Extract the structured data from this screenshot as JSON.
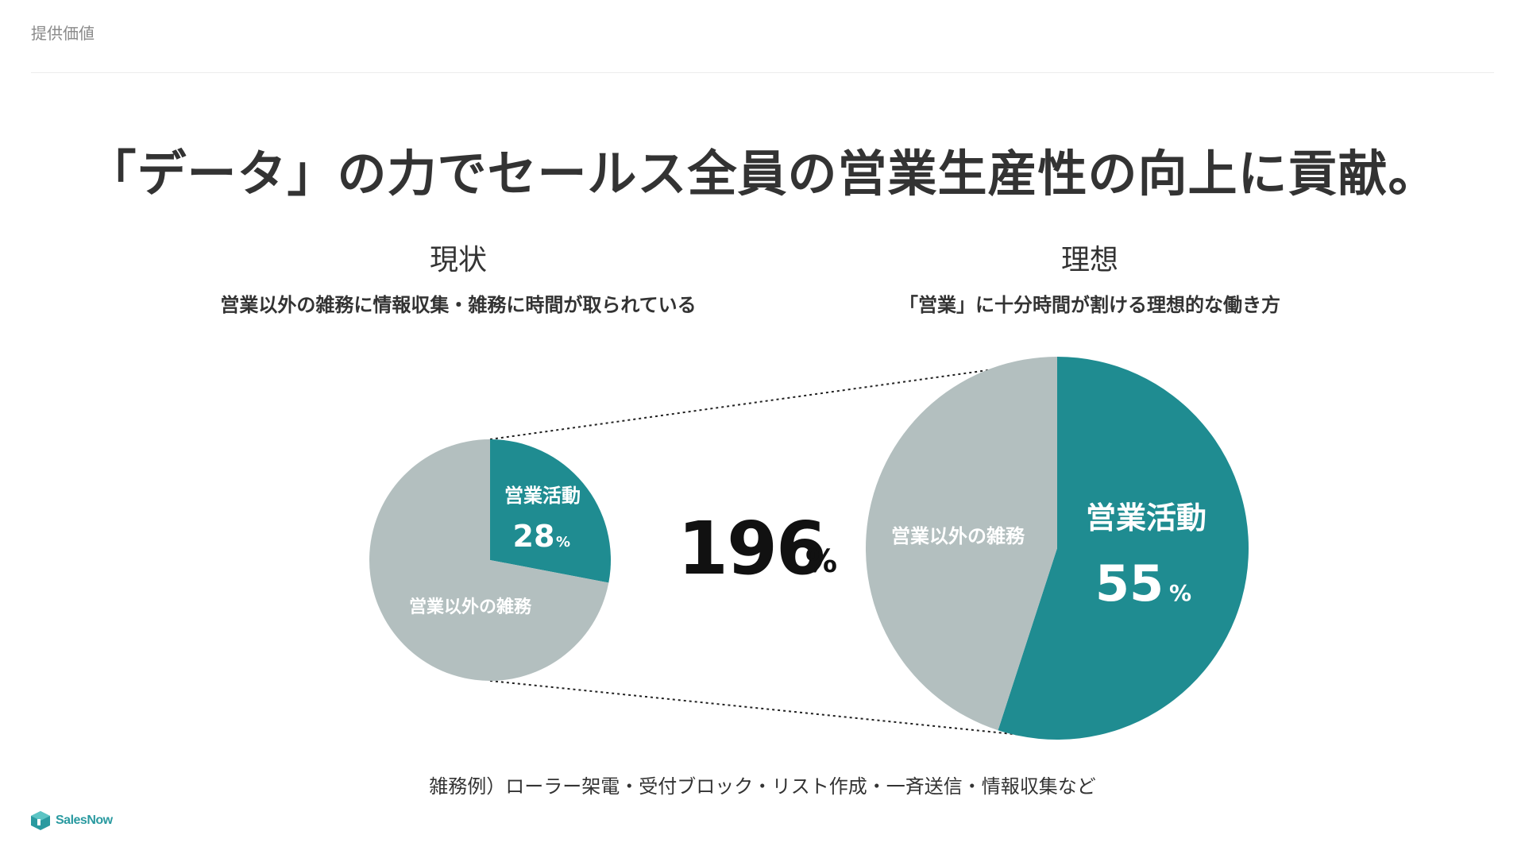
{
  "header": {
    "section_label": "提供価値"
  },
  "headline": "「データ」の力でセールス全員の営業生産性の向上に貢献。",
  "current": {
    "title": "現状",
    "subtitle": "営業以外の雑務に情報収集・雑務に時間が取られている"
  },
  "ideal": {
    "title": "理想",
    "subtitle": "「営業」に十分時間が割ける理想的な働き方"
  },
  "comparison": {
    "value": "196",
    "unit": "%"
  },
  "footnote": "雑務例）ローラー架電・受付ブロック・リスト作成・一斉送信・情報収集など",
  "logo": {
    "text": "SalesNow"
  },
  "colors": {
    "accent": "#1f8c91",
    "other": "#b3bfbf",
    "text": "#333333",
    "label_on_slice": "#ffffff"
  },
  "chart_data": [
    {
      "type": "pie",
      "name": "現状",
      "slices": [
        {
          "label": "営業活動",
          "value": 28,
          "value_text": "28",
          "unit": "%",
          "color": "#1f8c91"
        },
        {
          "label": "営業以外の雑務",
          "value": 72,
          "color": "#b3bfbf"
        }
      ]
    },
    {
      "type": "pie",
      "name": "理想",
      "slices": [
        {
          "label": "営業活動",
          "value": 55,
          "value_text": "55",
          "unit": "%",
          "color": "#1f8c91"
        },
        {
          "label": "営業以外の雑務",
          "value": 45,
          "color": "#b3bfbf"
        }
      ]
    }
  ]
}
